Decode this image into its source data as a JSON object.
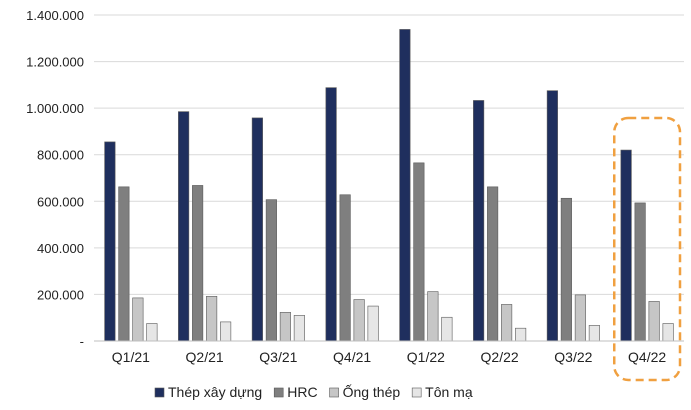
{
  "chart_data": {
    "type": "bar",
    "title": "",
    "xlabel": "",
    "ylabel": "",
    "categories": [
      "Q1/21",
      "Q2/21",
      "Q3/21",
      "Q4/21",
      "Q1/22",
      "Q2/22",
      "Q3/22",
      "Q4/22"
    ],
    "yticks": [
      "-",
      "200.000",
      "400.000",
      "600.000",
      "800.000",
      "1.000.000",
      "1.200.000",
      "1.400.000"
    ],
    "ylim": [
      0,
      1400000
    ],
    "grid": true,
    "legend_position": "bottom",
    "highlight_category": "Q4/22",
    "highlight_color": "#f0a040",
    "series": [
      {
        "name": "Thép xây dựng",
        "color": "#1f2f5e",
        "values": [
          855000,
          985000,
          958000,
          1088000,
          1338000,
          1033000,
          1075000,
          820000
        ]
      },
      {
        "name": "HRC",
        "color": "#7f7f7f",
        "values": [
          662000,
          668000,
          607000,
          628000,
          765000,
          662000,
          613000,
          593000
        ]
      },
      {
        "name": "Ống thép",
        "color": "#c6c6c6",
        "values": [
          185000,
          192000,
          123000,
          178000,
          212000,
          157000,
          198000,
          170000
        ]
      },
      {
        "name": "Tôn mạ",
        "color": "#e6e6e6",
        "values": [
          75000,
          82000,
          110000,
          150000,
          102000,
          55000,
          67000,
          75000
        ]
      }
    ]
  }
}
